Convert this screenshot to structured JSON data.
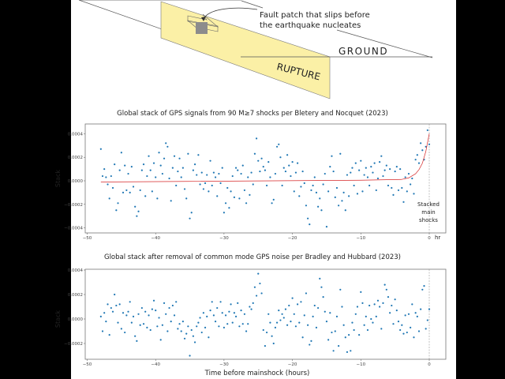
{
  "diagram": {
    "callout": [
      "Fault patch that slips before",
      "the earthquake nucleates"
    ],
    "ground_label": "GROUND",
    "rupture_label": "RUPTURE",
    "colors": {
      "fault_plane": "#fbf0a6",
      "patch": "#8c8c8c"
    }
  },
  "chart_data": [
    {
      "type": "scatter",
      "title": "Global stack of GPS signals from 90 M≥7 shocks per Bletery and Nocquet (2023)",
      "xlabel": "",
      "ylabel": "Stack",
      "x_unit_label": "hr",
      "annotation": [
        "Stacked",
        "main",
        "shocks"
      ],
      "xlim": [
        -50,
        2
      ],
      "ylim": [
        -0.00042,
        0.00045
      ],
      "xticks": [
        "−50",
        "−40",
        "−30",
        "−20",
        "−10",
        "0"
      ],
      "xtick_values": [
        -50,
        -40,
        -30,
        -20,
        -10,
        0
      ],
      "yticks": [
        "0.0004",
        "0.0002",
        "0.0000",
        "−0.0002",
        "−0.0004"
      ],
      "ytick_values": [
        4,
        2,
        0,
        -2,
        -4
      ],
      "y_scale": 0.0001,
      "x_start": -48,
      "x_step": 0.25,
      "point_color": "#1f77b4",
      "fit_color": "#d62728",
      "fit": [
        [
          -48,
          -0.1
        ],
        [
          -10,
          0.05
        ],
        [
          -4,
          0.12
        ],
        [
          -3,
          0.25
        ],
        [
          -2,
          0.6
        ],
        [
          -1.5,
          0.95
        ],
        [
          -1,
          1.5
        ],
        [
          -0.5,
          2.5
        ],
        [
          0,
          4.0
        ]
      ],
      "y": [
        2.7,
        0.4,
        1.0,
        0.3,
        -0.3,
        -1.5,
        0.4,
        -0.6,
        1.4,
        -2.5,
        -1.9,
        0.9,
        2.4,
        -1.0,
        1.3,
        -0.8,
        0.6,
        -1.0,
        1.2,
        -0.5,
        -2.2,
        -3.0,
        -2.6,
        -0.8,
        0.9,
        1.4,
        -1.3,
        0.4,
        2.1,
        0.9,
        -0.9,
        1.5,
        0.3,
        -1.5,
        2.4,
        1.3,
        0.6,
        1.9,
        3.2,
        2.9,
        0.2,
        -1.7,
        1.1,
        2.1,
        -0.4,
        0.8,
        1.9,
        0.3,
        1.1,
        -0.7,
        -1.5,
        2.3,
        -3.2,
        -2.7,
        0.9,
        1.4,
        0.5,
        2.2,
        -0.3,
        0.7,
        -0.7,
        -0.2,
        0.5,
        -0.9,
        1.7,
        -0.4,
        0.7,
        0.3,
        -1.3,
        0.6,
        -0.2,
        1.1,
        -2.7,
        -1.9,
        -0.6,
        -2.3,
        -0.9,
        0.4,
        -1.4,
        1.1,
        0.9,
        -1.5,
        0.6,
        1.3,
        -0.8,
        -1.9,
        0.3,
        -1.2,
        0.7,
        -0.3,
        2.3,
        3.6,
        1.7,
        0.8,
        1.9,
        1.2,
        0.9,
        -0.4,
        1.6,
        0.3,
        -1.9,
        -1.6,
        0.6,
        2.9,
        3.1,
        2.0,
        -0.4,
        1.1,
        0.8,
        2.2,
        1.3,
        0.4,
        1.6,
        -0.9,
        0.7,
        1.5,
        -1.3,
        -0.5,
        0.8,
        -0.2,
        -2.1,
        -3.2,
        -3.7,
        -0.8,
        -0.4,
        0.3,
        -1.0,
        -2.2,
        -1.5,
        -2.5,
        -0.3,
        0.6,
        -3.9,
        -0.9,
        1.2,
        2.1,
        0.8,
        -1.4,
        -0.6,
        -2.1,
        2.3,
        -1.7,
        -1.0,
        -2.5,
        0.5,
        -1.3,
        0.7,
        1.1,
        -0.4,
        1.5,
        -1.1,
        0.9,
        1.7,
        -0.9,
        0.5,
        1.1,
        0.3,
        -0.4,
        1.2,
        0.7,
        1.5,
        -0.8,
        0.2,
        1.6,
        2.1,
        0.4,
        0.9,
        1.3,
        -0.4,
        1.0,
        -0.6,
        -1.2,
        0.8,
        1.2,
        -0.8,
        1.0,
        -0.6,
        -1.8,
        0.3,
        -0.9,
        0.6,
        -0.3,
        0.2,
        -1.1,
        1.8,
        2.2,
        1.5,
        3.2,
        2.6,
        1.8,
        2.9,
        4.3,
        3.1
      ]
    },
    {
      "type": "scatter",
      "title": "Global stack after removal of common mode GPS noise per Bradley and Hubbard (2023)",
      "xlabel": "Time before mainshock (hours)",
      "ylabel": "Stack",
      "xlim": [
        -50,
        2
      ],
      "ylim": [
        -0.00033,
        0.0004
      ],
      "xticks": [
        "−50",
        "−40",
        "−30",
        "−20",
        "−10",
        "0"
      ],
      "xtick_values": [
        -50,
        -40,
        -30,
        -20,
        -10,
        0
      ],
      "yticks": [
        "0.0004",
        "0.0002",
        "0.0000",
        "−0.0002"
      ],
      "ytick_values": [
        4,
        2,
        0,
        -2
      ],
      "y_scale": 0.0001,
      "x_start": -48,
      "x_step": 0.25,
      "point_color": "#1f77b4",
      "y": [
        0.2,
        -1.0,
        0.5,
        -0.2,
        1.2,
        -1.3,
        0.9,
        0.6,
        2.0,
        1.1,
        -0.3,
        1.2,
        -0.8,
        0.5,
        -1.1,
        0.3,
        0.6,
        1.4,
        -0.3,
        0.2,
        -1.4,
        -1.8,
        0.4,
        -0.5,
        0.9,
        -0.4,
        0.6,
        -0.7,
        0.3,
        -0.9,
        0.8,
        1.5,
        0.7,
        -0.6,
        0.1,
        -1.7,
        -0.5,
        1.3,
        0.4,
        -1.0,
        0.9,
        -0.2,
        1.1,
        0.3,
        1.4,
        -0.8,
        -0.4,
        -1.0,
        -0.2,
        -1.6,
        -1.2,
        -0.6,
        -3.0,
        -0.9,
        -1.4,
        -1.9,
        -0.6,
        -0.3,
        0.1,
        -1.1,
        0.5,
        -0.7,
        0.2,
        -1.5,
        0.7,
        1.4,
        0.3,
        -0.2,
        0.9,
        -0.6,
        1.4,
        0.5,
        -0.7,
        0.3,
        -0.4,
        0.6,
        1.2,
        -0.3,
        0.5,
        0.2,
        1.3,
        -0.6,
        0.7,
        -0.4,
        0.4,
        -1.0,
        -0.4,
        1.0,
        0.8,
        1.3,
        2.6,
        1.9,
        3.7,
        2.9,
        2.1,
        -0.9,
        -2.2,
        -1.1,
        0.4,
        -0.3,
        -1.4,
        -2.0,
        -0.7,
        -0.3,
        0.7,
        -0.1,
        0.4,
        0.1,
        0.8,
        -0.5,
        1.1,
        -0.2,
        1.7,
        0.4,
        -0.6,
        1.2,
        -0.3,
        1.4,
        -1.5,
        0.3,
        2.1,
        -0.5,
        -2.1,
        -1.8,
        0.2,
        1.1,
        -0.7,
        0.9,
        3.3,
        2.6,
        1.8,
        0.6,
        -0.2,
        -1.7,
        0.5,
        -1.1,
        -2.6,
        -1.0,
        0.2,
        -2.2,
        2.4,
        1.0,
        -0.5,
        -1.5,
        -2.7,
        -1.3,
        -2.6,
        -0.3,
        -0.9,
        0.4,
        1.0,
        -1.3,
        2.2,
        1.3,
        -0.5,
        0.2,
        -0.9,
        1.1,
        0.0,
        -0.3,
        1.2,
        0.2,
        1.5,
        1.0,
        -0.8,
        1.3,
        2.8,
        2.4,
        1.8,
        0.5,
        1.1,
        -0.4,
        1.6,
        0.7,
        -0.2,
        -0.9,
        -0.5,
        -1.2,
        0.3,
        -1.1,
        0.4,
        -0.7,
        1.2,
        -1.5,
        0.5,
        0.2,
        -1.0,
        0.8,
        2.4,
        2.7,
        -0.8,
        -0.1,
        0.8
      ]
    }
  ]
}
